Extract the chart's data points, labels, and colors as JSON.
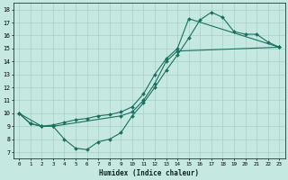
{
  "xlabel": "Humidex (Indice chaleur)",
  "xlim": [
    -0.5,
    23.5
  ],
  "ylim": [
    6.5,
    18.5
  ],
  "xticks": [
    0,
    1,
    2,
    3,
    4,
    5,
    6,
    7,
    8,
    9,
    10,
    11,
    12,
    13,
    14,
    15,
    16,
    17,
    18,
    19,
    20,
    21,
    22,
    23
  ],
  "yticks": [
    7,
    8,
    9,
    10,
    11,
    12,
    13,
    14,
    15,
    16,
    17,
    18
  ],
  "line_color": "#1a7060",
  "bg_color": "#c5e8e0",
  "grid_color": "#a8cfc8",
  "line1_x": [
    0,
    1,
    2,
    3,
    4,
    5,
    6,
    7,
    8,
    9,
    10,
    11,
    12,
    13,
    14,
    15,
    16,
    17,
    18,
    19,
    20,
    21,
    22,
    23
  ],
  "line1_y": [
    10.0,
    9.2,
    9.0,
    9.0,
    8.0,
    7.3,
    7.2,
    7.8,
    8.0,
    8.5,
    9.8,
    10.8,
    12.0,
    13.3,
    14.5,
    15.8,
    17.2,
    17.8,
    17.4,
    16.3,
    16.1,
    16.1,
    15.5,
    15.1
  ],
  "line2_x": [
    0,
    2,
    3,
    9,
    10,
    11,
    12,
    13,
    14,
    23
  ],
  "line2_y": [
    10.0,
    9.0,
    9.0,
    9.8,
    10.1,
    11.0,
    12.3,
    14.0,
    14.8,
    15.1
  ],
  "line3_x": [
    0,
    1,
    2,
    3,
    4,
    5,
    6,
    7,
    8,
    9,
    10,
    11,
    12,
    13,
    14,
    15,
    23
  ],
  "line3_y": [
    10.0,
    9.2,
    9.0,
    9.1,
    9.3,
    9.5,
    9.6,
    9.8,
    9.9,
    10.1,
    10.5,
    11.5,
    13.0,
    14.2,
    15.0,
    17.3,
    15.1
  ],
  "markersize": 2.0,
  "linewidth": 0.8
}
